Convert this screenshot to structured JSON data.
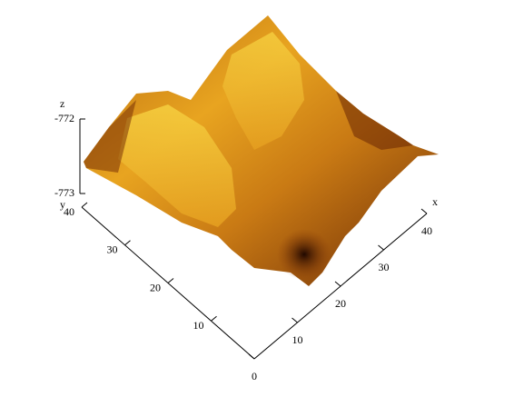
{
  "chart_data": {
    "type": "surface",
    "xlabel": "x",
    "ylabel": "y",
    "zlabel": "z",
    "xlim": [
      0,
      40
    ],
    "xticks": [
      0,
      10,
      20,
      30,
      40
    ],
    "ylim": [
      0,
      40
    ],
    "yticks": [
      10,
      20,
      30,
      40
    ],
    "zlim": [
      -773,
      -772
    ],
    "zticks": [
      -773,
      -772
    ]
  }
}
